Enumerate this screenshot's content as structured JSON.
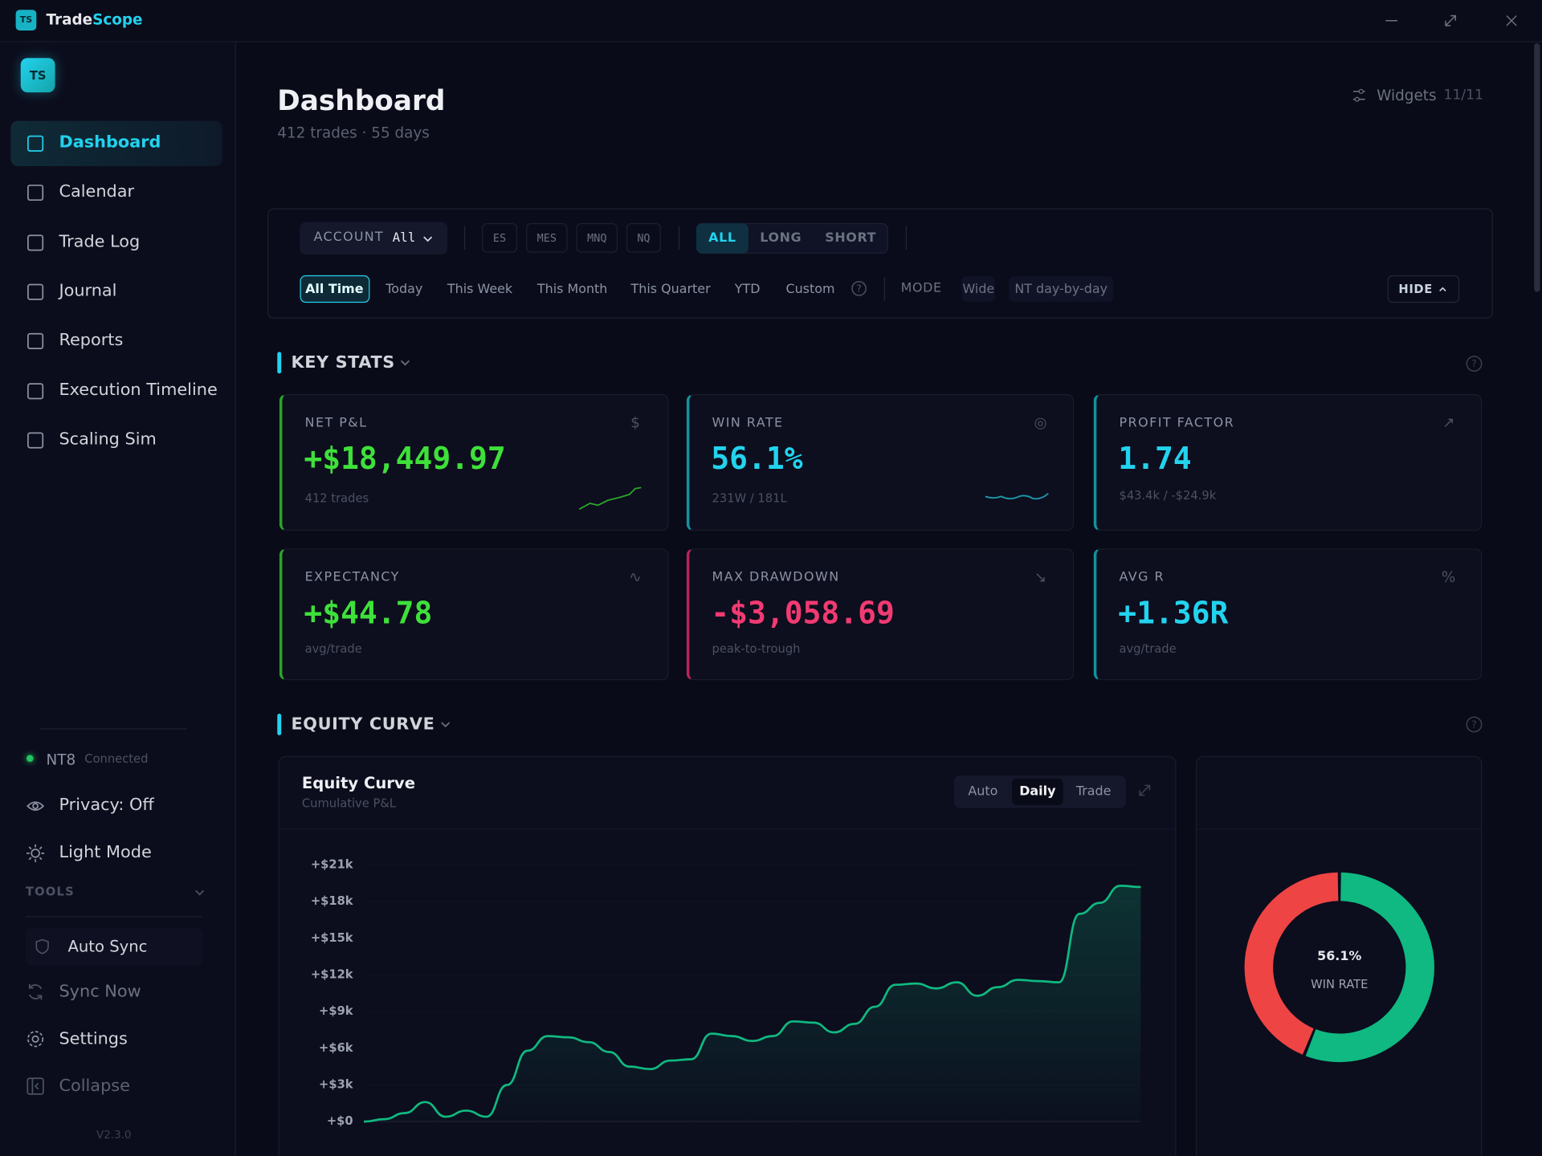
{
  "titlebar": {
    "logo": "TS",
    "brand_a": "Trade",
    "brand_b": "Scope"
  },
  "sidebar": {
    "logo": "TS",
    "nav": [
      "Dashboard",
      "Calendar",
      "Trade Log",
      "Journal",
      "Reports",
      "Execution Timeline",
      "Scaling Sim"
    ],
    "status_name": "NT8",
    "status_state": "Connected",
    "privacy": "Privacy: Off",
    "light_mode": "Light Mode",
    "tools": "TOOLS",
    "auto_sync": "Auto Sync",
    "sync_now": "Sync Now",
    "settings": "Settings",
    "collapse": "Collapse",
    "version": "V2.3.0"
  },
  "header": {
    "title": "Dashboard",
    "subtitle": "412 trades · 55 days",
    "widgets": "Widgets",
    "widgets_count": "11/11"
  },
  "filters": {
    "account_label": "ACCOUNT",
    "account_value": "All",
    "symbols": [
      "ES",
      "MES",
      "MNQ",
      "NQ"
    ],
    "sides": [
      "ALL",
      "LONG",
      "SHORT"
    ],
    "ranges": [
      "All Time",
      "Today",
      "This Week",
      "This Month",
      "This Quarter",
      "YTD",
      "Custom"
    ],
    "mode_label": "MODE",
    "modes": [
      "Wide",
      "NT day-by-day"
    ],
    "hide": "HIDE"
  },
  "key_stats": {
    "title": "KEY STATS",
    "cards": [
      {
        "label": "NET P&L",
        "value": "+$18,449.97",
        "sub": "412 trades",
        "color": "#3ee03a",
        "accent": "#2aa52a"
      },
      {
        "label": "WIN RATE",
        "value": "56.1%",
        "sub": "231W / 181L",
        "color": "#22d3ee",
        "accent": "#12929e"
      },
      {
        "label": "PROFIT FACTOR",
        "value": "1.74",
        "sub": "$43.4k / -$24.9k",
        "color": "#22d3ee",
        "accent": "#12929e"
      },
      {
        "label": "EXPECTANCY",
        "value": "+$44.78",
        "sub": "avg/trade",
        "color": "#3ee03a",
        "accent": "#2aa52a"
      },
      {
        "label": "MAX DRAWDOWN",
        "value": "-$3,058.69",
        "sub": "peak-to-trough",
        "color": "#f23a72",
        "accent": "#b8245a"
      },
      {
        "label": "AVG R",
        "value": "+1.36R",
        "sub": "avg/trade",
        "color": "#22d3ee",
        "accent": "#12929e"
      }
    ]
  },
  "equity_section": "EQUITY CURVE",
  "chart_data": [
    {
      "type": "line",
      "title": "Equity Curve",
      "subtitle": "Cumulative P&L",
      "views": [
        "Auto",
        "Daily",
        "Trade"
      ],
      "values": [
        0,
        200,
        700,
        1600,
        400,
        900,
        400,
        3000,
        5800,
        7000,
        6900,
        6500,
        5700,
        4500,
        4300,
        5000,
        5100,
        7200,
        7000,
        6600,
        7000,
        8200,
        8100,
        7300,
        8000,
        9400,
        11200,
        11300,
        10900,
        11400,
        10300,
        11000,
        11600,
        11500,
        11400,
        17000,
        17900,
        19300,
        19200
      ],
      "color": "#10b981",
      "ylim": [
        -3000,
        22500
      ],
      "yticks": [
        {
          "value": 0,
          "label": "+$0"
        },
        {
          "value": 3000,
          "label": "+$3k"
        },
        {
          "value": 6000,
          "label": "+$6k"
        },
        {
          "value": 9000,
          "label": "+$9k"
        },
        {
          "value": 12000,
          "label": "+$12k"
        },
        {
          "value": 15000,
          "label": "+$15k"
        },
        {
          "value": 18000,
          "label": "+$18k"
        },
        {
          "value": 21000,
          "label": "+$21k"
        }
      ],
      "grid": true
    },
    {
      "type": "pie",
      "values": [
        231,
        181
      ],
      "colors": [
        "#10b981",
        "#ef4444"
      ],
      "center_value": "56.1%",
      "center_label": "WIN RATE"
    }
  ]
}
